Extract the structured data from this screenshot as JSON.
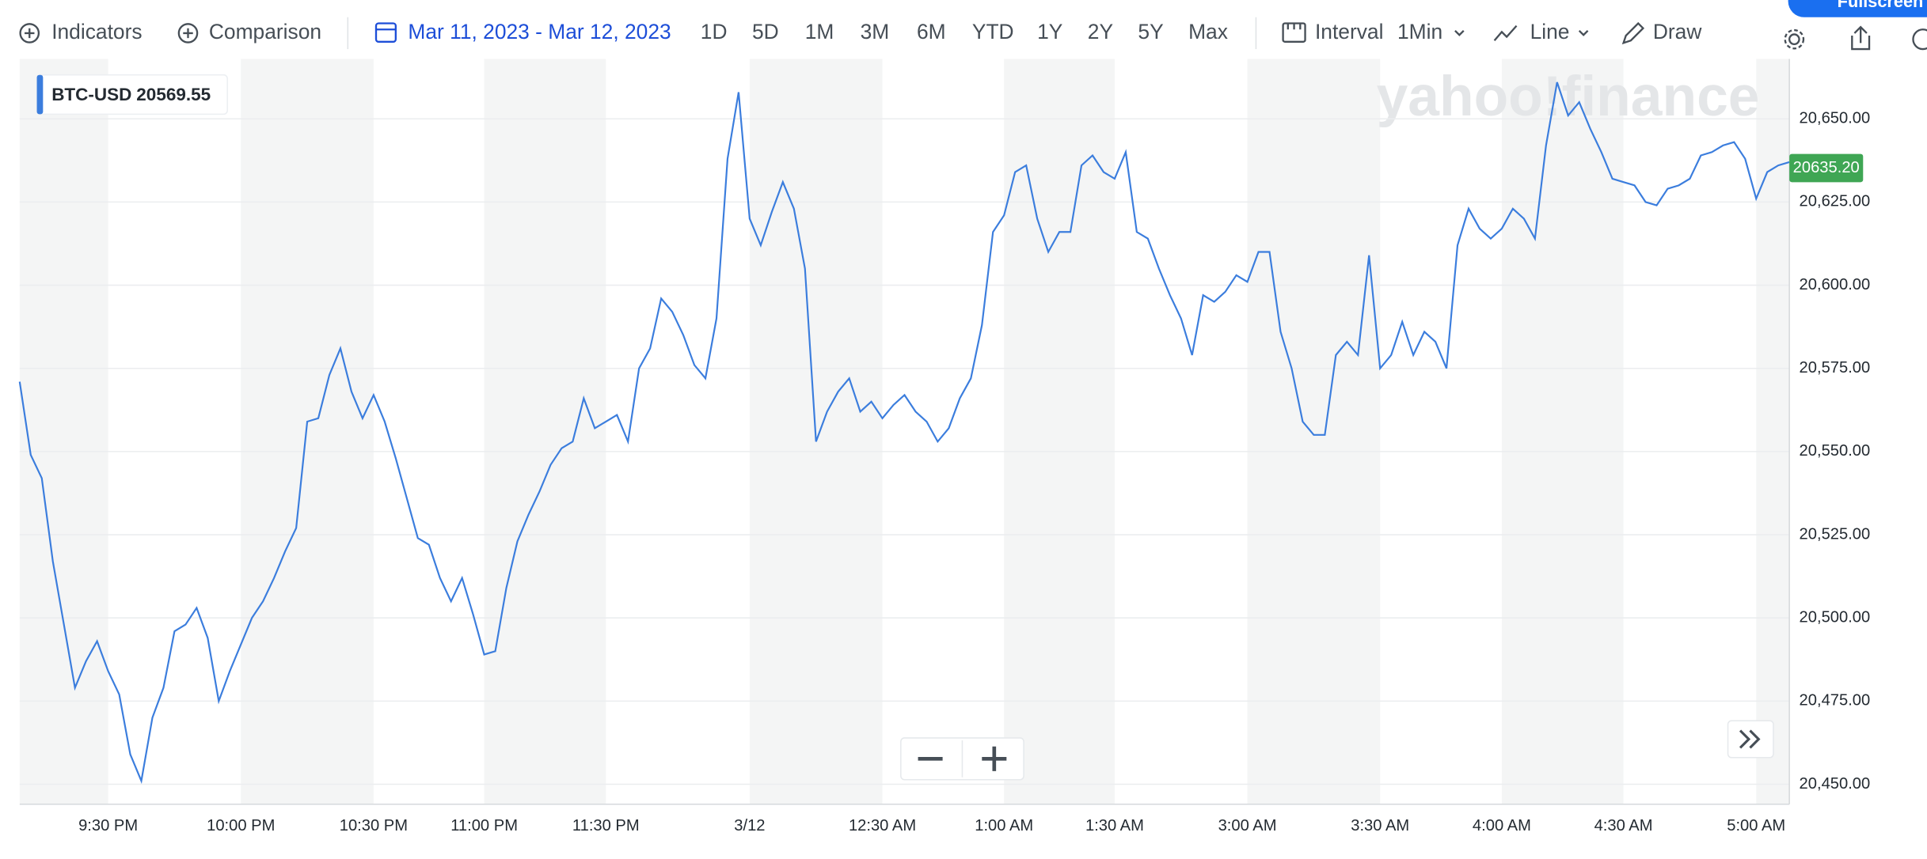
{
  "toolbar": {
    "indicators": "Indicators",
    "comparison": "Comparison",
    "date_range": "Mar 11, 2023 - Mar 12, 2023",
    "ranges": [
      "1D",
      "5D",
      "1M",
      "3M",
      "6M",
      "YTD",
      "1Y",
      "2Y",
      "5Y",
      "Max"
    ],
    "interval_label": "Interval",
    "interval": "1Min",
    "chart_style": "Line",
    "draw": "Draw",
    "fullscreen": "Fullscreen"
  },
  "chart_data": {
    "type": "line",
    "watermark": "yahoo!finance",
    "legend_value": 20569.55,
    "last_price": {
      "value": 20635.2,
      "label": "20635.20"
    },
    "categories": [
      null,
      null,
      null,
      null,
      null,
      null,
      null,
      null,
      "9:30 PM",
      null,
      null,
      null,
      null,
      null,
      null,
      null,
      null,
      null,
      null,
      null,
      "10:00 PM",
      null,
      null,
      null,
      null,
      null,
      null,
      null,
      null,
      null,
      null,
      null,
      "10:30 PM",
      null,
      null,
      null,
      null,
      null,
      null,
      null,
      null,
      null,
      "11:00 PM",
      null,
      null,
      null,
      null,
      null,
      null,
      null,
      null,
      null,
      null,
      "11:30 PM",
      null,
      null,
      null,
      null,
      null,
      null,
      null,
      null,
      null,
      null,
      null,
      null,
      "3/12",
      null,
      null,
      null,
      null,
      null,
      null,
      null,
      null,
      null,
      null,
      null,
      "12:30 AM",
      null,
      null,
      null,
      null,
      null,
      null,
      null,
      null,
      null,
      null,
      "1:00 AM",
      null,
      null,
      null,
      null,
      null,
      null,
      null,
      null,
      null,
      "1:30 AM",
      null,
      null,
      null,
      null,
      null,
      null,
      null,
      null,
      null,
      null,
      null,
      "3:00 AM",
      null,
      null,
      null,
      null,
      null,
      null,
      null,
      null,
      null,
      null,
      null,
      "3:30 AM",
      null,
      null,
      null,
      null,
      null,
      null,
      null,
      null,
      null,
      null,
      "4:00 AM",
      null,
      null,
      null,
      null,
      null,
      null,
      null,
      null,
      null,
      null,
      "4:30 AM",
      null,
      null,
      null,
      null,
      null,
      null,
      null,
      null,
      null,
      null,
      null,
      "5:00 AM",
      null,
      null,
      null
    ],
    "series": [
      {
        "name": "BTC-USD",
        "color": "#3b7ddd",
        "values": [
          20571,
          20549,
          20542,
          20517,
          20498,
          20479,
          20487,
          20493,
          20484,
          20477,
          20459,
          20451,
          20470,
          20479,
          20496,
          20498,
          20503,
          20494,
          20475,
          20484,
          20492,
          20500,
          20505,
          20512,
          20520,
          20527,
          20559,
          20560,
          20573,
          20581,
          20568,
          20560,
          20567,
          20559,
          20548,
          20536,
          20524,
          20522,
          20512,
          20505,
          20512,
          20501,
          20489,
          20490,
          20509,
          20523,
          20531,
          20538,
          20546,
          20551,
          20553,
          20566,
          20557,
          20559,
          20561,
          20553,
          20575,
          20581,
          20596,
          20592,
          20585,
          20576,
          20572,
          20590,
          20638,
          20658,
          20620,
          20612,
          20622,
          20631,
          20623,
          20605,
          20553,
          20562,
          20568,
          20572,
          20562,
          20565,
          20560,
          20564,
          20567,
          20562,
          20559,
          20553,
          20557,
          20566,
          20572,
          20588,
          20616,
          20621,
          20634,
          20636,
          20620,
          20610,
          20616,
          20616,
          20636,
          20639,
          20634,
          20632,
          20640,
          20616,
          20614,
          20605,
          20597,
          20590,
          20579,
          20597,
          20595,
          20598,
          20603,
          20601,
          20610,
          20610,
          20586,
          20575,
          20559,
          20555,
          20555,
          20579,
          20583,
          20579,
          20609,
          20575,
          20579,
          20589,
          20579,
          20586,
          20583,
          20575,
          20612,
          20623,
          20617,
          20614,
          20617,
          20623,
          20620,
          20614,
          20642,
          20661,
          20651,
          20655,
          20647,
          20640,
          20632,
          20631,
          20630,
          20625,
          20624,
          20629,
          20630,
          20632,
          20639,
          20640,
          20642,
          20643,
          20638,
          20626,
          20634,
          20636,
          20637
        ]
      }
    ],
    "ylim": [
      20444,
      20668
    ],
    "yticks": [
      {
        "value": 20450,
        "label": "20,450.00"
      },
      {
        "value": 20475,
        "label": "20,475.00"
      },
      {
        "value": 20500,
        "label": "20,500.00"
      },
      {
        "value": 20525,
        "label": "20,525.00"
      },
      {
        "value": 20550,
        "label": "20,550.00"
      },
      {
        "value": 20575,
        "label": "20,575.00"
      },
      {
        "value": 20600,
        "label": "20,600.00"
      },
      {
        "value": 20625,
        "label": "20,625.00"
      },
      {
        "value": 20650,
        "label": "20,650.00"
      }
    ],
    "grid": true
  }
}
